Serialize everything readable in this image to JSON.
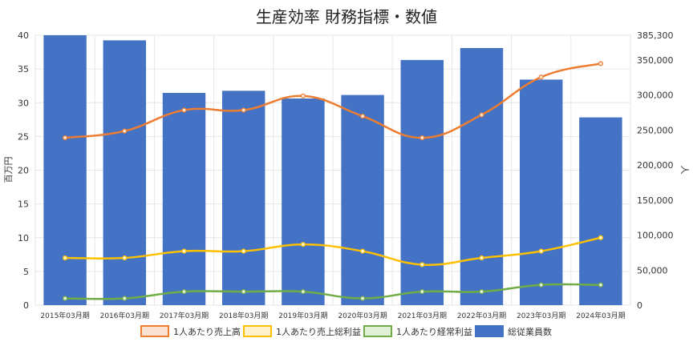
{
  "chart_data": {
    "type": "bar",
    "title": "生産効率 財務指標・数値",
    "ylabel_left": "百万円",
    "ylabel_right": "人",
    "y_left_lim": [
      0,
      40
    ],
    "y_left_ticks": [
      "0",
      "5",
      "10",
      "15",
      "20",
      "25",
      "30",
      "35",
      "40"
    ],
    "y_right_lim": [
      0,
      385300
    ],
    "y_right_ticks": [
      "0",
      "50,000",
      "100,000",
      "150,000",
      "200,000",
      "250,000",
      "300,000",
      "350,000",
      "385,300"
    ],
    "grid": true,
    "legend_position": "bottom",
    "categories": [
      "2015年03月期",
      "2016年03月期",
      "2017年03月期",
      "2018年03月期",
      "2019年03月期",
      "2020年03月期",
      "2021年03月期",
      "2022年03月期",
      "2023年03月期",
      "2024年03月期"
    ],
    "bar_series": {
      "name": "総従業員数",
      "axis": "right",
      "color": "#4472c4",
      "values": [
        385300,
        378000,
        303000,
        306000,
        295000,
        300000,
        350000,
        367000,
        322000,
        268000
      ]
    },
    "line_series": [
      {
        "name": "1人あたり売上高",
        "axis": "left",
        "color": "#ed7d31",
        "fill": "#fbe3d4",
        "values": [
          24.8,
          25.8,
          28.9,
          28.9,
          31.0,
          28.0,
          24.8,
          28.2,
          33.8,
          35.8
        ]
      },
      {
        "name": "1人あたり売上総利益",
        "axis": "left",
        "color": "#ffc000",
        "fill": "#fff2cc",
        "values": [
          7.0,
          7.0,
          8.0,
          8.0,
          9.0,
          8.0,
          6.0,
          7.0,
          8.0,
          10.0
        ]
      },
      {
        "name": "1人あたり経常利益",
        "axis": "left",
        "color": "#70ad47",
        "fill": "#e2efd9",
        "values": [
          1.0,
          1.0,
          2.0,
          2.0,
          2.0,
          1.0,
          2.0,
          2.0,
          3.0,
          3.0
        ]
      }
    ],
    "legend": [
      "1人あたり売上高",
      "1人あたり売上総利益",
      "1人あたり経常利益",
      "総従業員数"
    ]
  }
}
